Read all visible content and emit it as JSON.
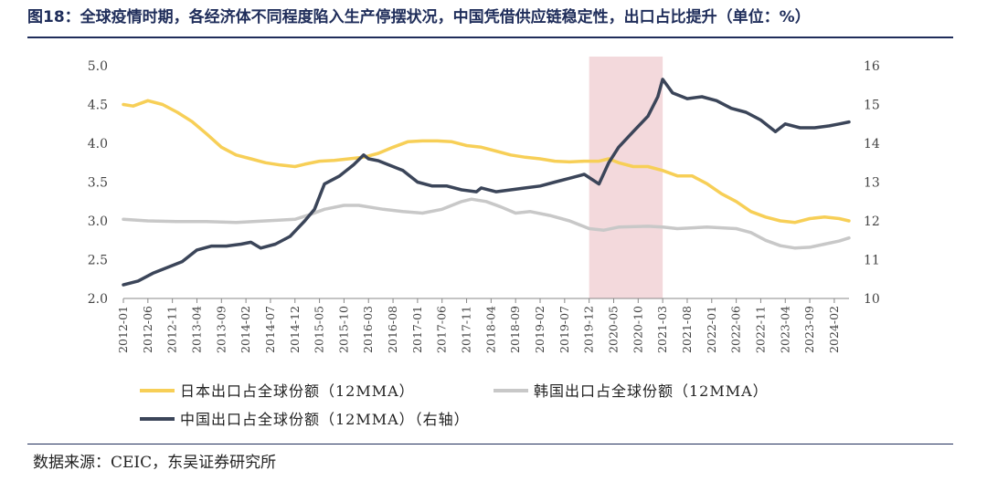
{
  "header": {
    "title": "图18：全球疫情时期，各经济体不同程度陷入生产停摆状况，中国凭借供应链稳定性，出口占比提升（单位：%）"
  },
  "footer": {
    "source": "数据来源：CEIC，东吴证券研究所"
  },
  "colors": {
    "japan": "#f7cf57",
    "korea": "#c8c8c8",
    "china": "#3b4559",
    "highlight": "#f3d9dc",
    "axis": "#888888",
    "tick_text": "#444444"
  },
  "chart_data": {
    "type": "line",
    "title": "",
    "x_start": "2012-01",
    "x_end": "2024-05",
    "xticks": [
      "2012-01",
      "2012-06",
      "2012-11",
      "2013-04",
      "2013-09",
      "2014-02",
      "2014-07",
      "2014-12",
      "2015-05",
      "2015-10",
      "2016-03",
      "2016-08",
      "2017-01",
      "2017-06",
      "2017-11",
      "2018-04",
      "2018-09",
      "2019-02",
      "2019-07",
      "2019-12",
      "2020-05",
      "2020-10",
      "2021-03",
      "2021-08",
      "2022-01",
      "2022-06",
      "2022-11",
      "2023-04",
      "2023-09",
      "2024-02"
    ],
    "ylim_left": [
      2.0,
      5.0
    ],
    "yticks_left": [
      "2.0",
      "2.5",
      "3.0",
      "3.5",
      "4.0",
      "4.5",
      "5.0"
    ],
    "ylim_right": [
      10,
      16
    ],
    "yticks_right": [
      "10",
      "11",
      "12",
      "13",
      "14",
      "15",
      "16"
    ],
    "shaded_region": {
      "from": "2019-12",
      "to": "2021-03"
    },
    "series": [
      {
        "key": "japan",
        "name": "日本出口占全球份额（12MMA）",
        "axis": "left",
        "points": [
          [
            "2012-01",
            4.5
          ],
          [
            "2012-03",
            4.48
          ],
          [
            "2012-06",
            4.55
          ],
          [
            "2012-09",
            4.5
          ],
          [
            "2012-12",
            4.4
          ],
          [
            "2013-03",
            4.28
          ],
          [
            "2013-06",
            4.12
          ],
          [
            "2013-09",
            3.95
          ],
          [
            "2013-12",
            3.85
          ],
          [
            "2014-03",
            3.8
          ],
          [
            "2014-06",
            3.75
          ],
          [
            "2014-09",
            3.72
          ],
          [
            "2014-12",
            3.7
          ],
          [
            "2015-02",
            3.73
          ],
          [
            "2015-05",
            3.77
          ],
          [
            "2015-08",
            3.78
          ],
          [
            "2015-11",
            3.8
          ],
          [
            "2016-02",
            3.82
          ],
          [
            "2016-05",
            3.87
          ],
          [
            "2016-08",
            3.95
          ],
          [
            "2016-11",
            4.02
          ],
          [
            "2017-02",
            4.03
          ],
          [
            "2017-05",
            4.03
          ],
          [
            "2017-08",
            4.02
          ],
          [
            "2017-11",
            3.97
          ],
          [
            "2018-02",
            3.95
          ],
          [
            "2018-05",
            3.9
          ],
          [
            "2018-08",
            3.85
          ],
          [
            "2018-11",
            3.82
          ],
          [
            "2019-02",
            3.8
          ],
          [
            "2019-05",
            3.77
          ],
          [
            "2019-08",
            3.76
          ],
          [
            "2019-11",
            3.77
          ],
          [
            "2020-02",
            3.77
          ],
          [
            "2020-04",
            3.8
          ],
          [
            "2020-06",
            3.75
          ],
          [
            "2020-09",
            3.7
          ],
          [
            "2020-12",
            3.7
          ],
          [
            "2021-03",
            3.65
          ],
          [
            "2021-06",
            3.58
          ],
          [
            "2021-09",
            3.58
          ],
          [
            "2021-12",
            3.48
          ],
          [
            "2022-03",
            3.35
          ],
          [
            "2022-06",
            3.25
          ],
          [
            "2022-09",
            3.12
          ],
          [
            "2022-12",
            3.05
          ],
          [
            "2023-03",
            3.0
          ],
          [
            "2023-06",
            2.98
          ],
          [
            "2023-09",
            3.03
          ],
          [
            "2023-12",
            3.05
          ],
          [
            "2024-03",
            3.03
          ],
          [
            "2024-05",
            3.0
          ]
        ]
      },
      {
        "key": "korea",
        "name": "韩国出口占全球份额（12MMA）",
        "axis": "left",
        "points": [
          [
            "2012-01",
            3.02
          ],
          [
            "2012-06",
            3.0
          ],
          [
            "2012-12",
            2.99
          ],
          [
            "2013-06",
            2.99
          ],
          [
            "2013-12",
            2.98
          ],
          [
            "2014-06",
            3.0
          ],
          [
            "2014-12",
            3.02
          ],
          [
            "2015-03",
            3.08
          ],
          [
            "2015-06",
            3.15
          ],
          [
            "2015-10",
            3.2
          ],
          [
            "2016-01",
            3.2
          ],
          [
            "2016-06",
            3.15
          ],
          [
            "2016-10",
            3.12
          ],
          [
            "2017-02",
            3.1
          ],
          [
            "2017-06",
            3.15
          ],
          [
            "2017-10",
            3.25
          ],
          [
            "2017-12",
            3.28
          ],
          [
            "2018-03",
            3.25
          ],
          [
            "2018-06",
            3.18
          ],
          [
            "2018-09",
            3.1
          ],
          [
            "2018-12",
            3.12
          ],
          [
            "2019-04",
            3.07
          ],
          [
            "2019-08",
            3.0
          ],
          [
            "2019-12",
            2.9
          ],
          [
            "2020-03",
            2.88
          ],
          [
            "2020-06",
            2.92
          ],
          [
            "2020-12",
            2.93
          ],
          [
            "2021-03",
            2.92
          ],
          [
            "2021-06",
            2.9
          ],
          [
            "2021-12",
            2.92
          ],
          [
            "2022-06",
            2.9
          ],
          [
            "2022-09",
            2.85
          ],
          [
            "2022-12",
            2.75
          ],
          [
            "2023-03",
            2.68
          ],
          [
            "2023-06",
            2.65
          ],
          [
            "2023-09",
            2.66
          ],
          [
            "2023-12",
            2.7
          ],
          [
            "2024-03",
            2.74
          ],
          [
            "2024-05",
            2.78
          ]
        ]
      },
      {
        "key": "china",
        "name": "中国出口占全球份额（12MMA）（右轴）",
        "axis": "right",
        "points": [
          [
            "2012-01",
            10.35
          ],
          [
            "2012-04",
            10.45
          ],
          [
            "2012-07",
            10.65
          ],
          [
            "2012-10",
            10.8
          ],
          [
            "2013-01",
            10.95
          ],
          [
            "2013-04",
            11.25
          ],
          [
            "2013-07",
            11.35
          ],
          [
            "2013-10",
            11.35
          ],
          [
            "2014-01",
            11.4
          ],
          [
            "2014-03",
            11.45
          ],
          [
            "2014-05",
            11.3
          ],
          [
            "2014-08",
            11.4
          ],
          [
            "2014-11",
            11.6
          ],
          [
            "2015-02",
            12.0
          ],
          [
            "2015-04",
            12.3
          ],
          [
            "2015-06",
            12.95
          ],
          [
            "2015-09",
            13.15
          ],
          [
            "2015-12",
            13.45
          ],
          [
            "2016-02",
            13.7
          ],
          [
            "2016-03",
            13.6
          ],
          [
            "2016-05",
            13.55
          ],
          [
            "2016-07",
            13.45
          ],
          [
            "2016-10",
            13.3
          ],
          [
            "2017-01",
            13.0
          ],
          [
            "2017-04",
            12.9
          ],
          [
            "2017-07",
            12.9
          ],
          [
            "2017-10",
            12.8
          ],
          [
            "2018-01",
            12.75
          ],
          [
            "2018-02",
            12.85
          ],
          [
            "2018-05",
            12.75
          ],
          [
            "2018-08",
            12.8
          ],
          [
            "2018-11",
            12.85
          ],
          [
            "2019-02",
            12.9
          ],
          [
            "2019-05",
            13.0
          ],
          [
            "2019-08",
            13.1
          ],
          [
            "2019-11",
            13.2
          ],
          [
            "2020-02",
            12.95
          ],
          [
            "2020-04",
            13.5
          ],
          [
            "2020-06",
            13.9
          ],
          [
            "2020-09",
            14.3
          ],
          [
            "2020-12",
            14.7
          ],
          [
            "2021-02",
            15.2
          ],
          [
            "2021-03",
            15.65
          ],
          [
            "2021-05",
            15.3
          ],
          [
            "2021-08",
            15.15
          ],
          [
            "2021-11",
            15.2
          ],
          [
            "2022-02",
            15.1
          ],
          [
            "2022-05",
            14.9
          ],
          [
            "2022-08",
            14.8
          ],
          [
            "2022-11",
            14.6
          ],
          [
            "2023-02",
            14.3
          ],
          [
            "2023-04",
            14.5
          ],
          [
            "2023-07",
            14.4
          ],
          [
            "2023-10",
            14.4
          ],
          [
            "2024-01",
            14.45
          ],
          [
            "2024-03",
            14.5
          ],
          [
            "2024-05",
            14.55
          ]
        ]
      }
    ]
  }
}
